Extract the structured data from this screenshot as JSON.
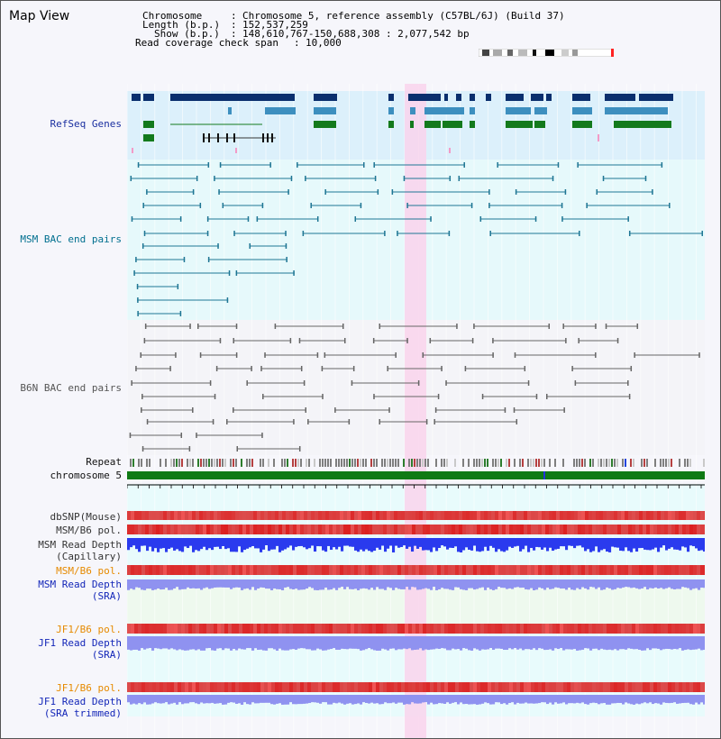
{
  "view": {
    "title": "Map View"
  },
  "info": {
    "chromosome_label": "Chromosome",
    "chromosome_value": "Chromosome 5, reference assembly (C57BL/6J) (Build 37)",
    "length_label": "Length (b.p.)",
    "length_value": "152,537,259",
    "show_label": "Show (b.p.)",
    "show_value": "148,610,767-150,688,308 : 2,077,542 bp",
    "coverage_label": "Read coverage check span",
    "coverage_value": "10,000",
    "separator": ":"
  },
  "tracks": {
    "refseq": "RefSeq Genes",
    "msm_bac": "MSM BAC end pairs",
    "b6n_bac": "B6N BAC end pairs",
    "repeat": "Repeat",
    "chromosome": "chromosome 5",
    "dbsnp": "dbSNP(Mouse)",
    "msm_b6_pol": "MSM/B6 pol.",
    "msm_depth_cap_1": "MSM Read Depth",
    "msm_depth_cap_2": "(Capillary)",
    "msm_b6_pol_sra": "MSM/B6 pol.",
    "msm_depth_sra_1": "MSM Read Depth",
    "msm_depth_sra_2": "(SRA)",
    "jf1_b6_pol": "JF1/B6 pol.",
    "jf1_depth_sra_1": "JF1 Read Depth",
    "jf1_depth_sra_2": "(SRA)",
    "jf1_b6_pol_trim": "JF1/B6 pol.",
    "jf1_depth_trim_1": "JF1 Read Depth",
    "jf1_depth_trim_2": "(SRA trimmed)"
  },
  "axis": {
    "ticks": [
      "148800000",
      "149200000",
      "149600000",
      "150000000",
      "150400000"
    ]
  },
  "colors": {
    "refseq_bg": "#dcf0fb",
    "msm_bg": "#e6f9fb",
    "b6n_bg": "#f4f4f8",
    "highlight": "#f9d3ec",
    "gene_dark": "#0a2f6e",
    "gene_mid": "#3d8fbf",
    "gene_green": "#137a1c",
    "msm_line": "#1f7694",
    "b6n_line": "#666666",
    "chromosome_bar": "#0f7a14",
    "depth_blue": "#2a3aee",
    "depth_light": "#8f92f0"
  },
  "icons": [
    "ideogram-icon"
  ]
}
